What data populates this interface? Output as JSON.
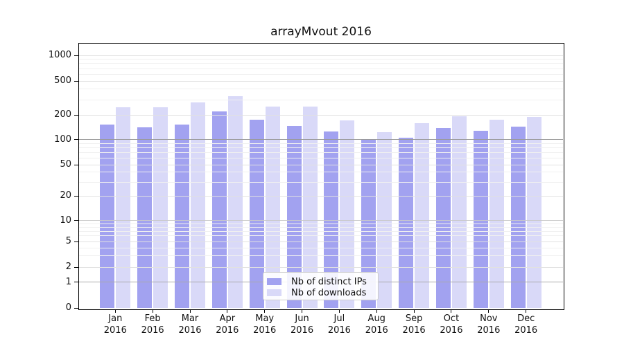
{
  "title": "arrayMvout 2016",
  "chart_data": {
    "type": "bar",
    "title": "arrayMvout 2016",
    "categories": [
      "Jan 2016",
      "Feb 2016",
      "Mar 2016",
      "Apr 2016",
      "May 2016",
      "Jun 2016",
      "Jul 2016",
      "Aug 2016",
      "Sep 2016",
      "Oct 2016",
      "Nov 2016",
      "Dec 2016"
    ],
    "series": [
      {
        "name": "Nb of distinct IPs",
        "color": "#a2a2f0",
        "values": [
          152,
          140,
          152,
          220,
          174,
          147,
          125,
          99,
          106,
          138,
          127,
          143
        ]
      },
      {
        "name": "Nb of downloads",
        "color": "#d9d9f8",
        "values": [
          245,
          245,
          280,
          330,
          248,
          248,
          171,
          123,
          157,
          193,
          175,
          190
        ]
      }
    ],
    "y_axis": {
      "scale": "log",
      "tick_labels": [
        "0",
        "1",
        "2",
        "5",
        "10",
        "20",
        "50",
        "100",
        "200",
        "500",
        "1000"
      ],
      "ticks": [
        0,
        1,
        2,
        5,
        10,
        20,
        50,
        100,
        200,
        500,
        1000
      ],
      "ylim": [
        0,
        1400
      ]
    },
    "xlabel": "",
    "ylabel": "",
    "grid": true,
    "legend_position": "bottom-center"
  },
  "legend": {
    "item1": "Nb of distinct IPs",
    "item2": "Nb of downloads"
  }
}
